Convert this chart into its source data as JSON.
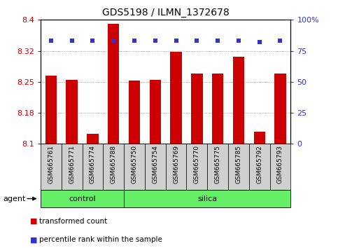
{
  "title": "GDS5198 / ILMN_1372678",
  "samples": [
    "GSM665761",
    "GSM665771",
    "GSM665774",
    "GSM665788",
    "GSM665750",
    "GSM665754",
    "GSM665769",
    "GSM665770",
    "GSM665775",
    "GSM665785",
    "GSM665792",
    "GSM665793"
  ],
  "n_control": 4,
  "n_silica": 8,
  "bar_values": [
    8.265,
    8.255,
    8.125,
    8.39,
    8.253,
    8.255,
    8.322,
    8.27,
    8.27,
    8.31,
    8.13,
    8.27
  ],
  "percentile_values": [
    83,
    83,
    83,
    83,
    83,
    83,
    83,
    83,
    83,
    83,
    82,
    83
  ],
  "bar_color": "#cc0000",
  "dot_color": "#3333cc",
  "ymin": 8.1,
  "ymax": 8.4,
  "yticks": [
    8.1,
    8.175,
    8.25,
    8.325,
    8.4
  ],
  "y2min": 0,
  "y2max": 100,
  "y2ticks": [
    0,
    25,
    50,
    75,
    100
  ],
  "y2ticklabels": [
    "0",
    "25",
    "50",
    "75",
    "100%"
  ],
  "grid_color": "#888888",
  "label_bg": "#d0d0d0",
  "group_color": "#66ee66",
  "agent_label": "agent",
  "legend_red": "transformed count",
  "legend_blue": "percentile rank within the sample",
  "bar_width": 0.55
}
